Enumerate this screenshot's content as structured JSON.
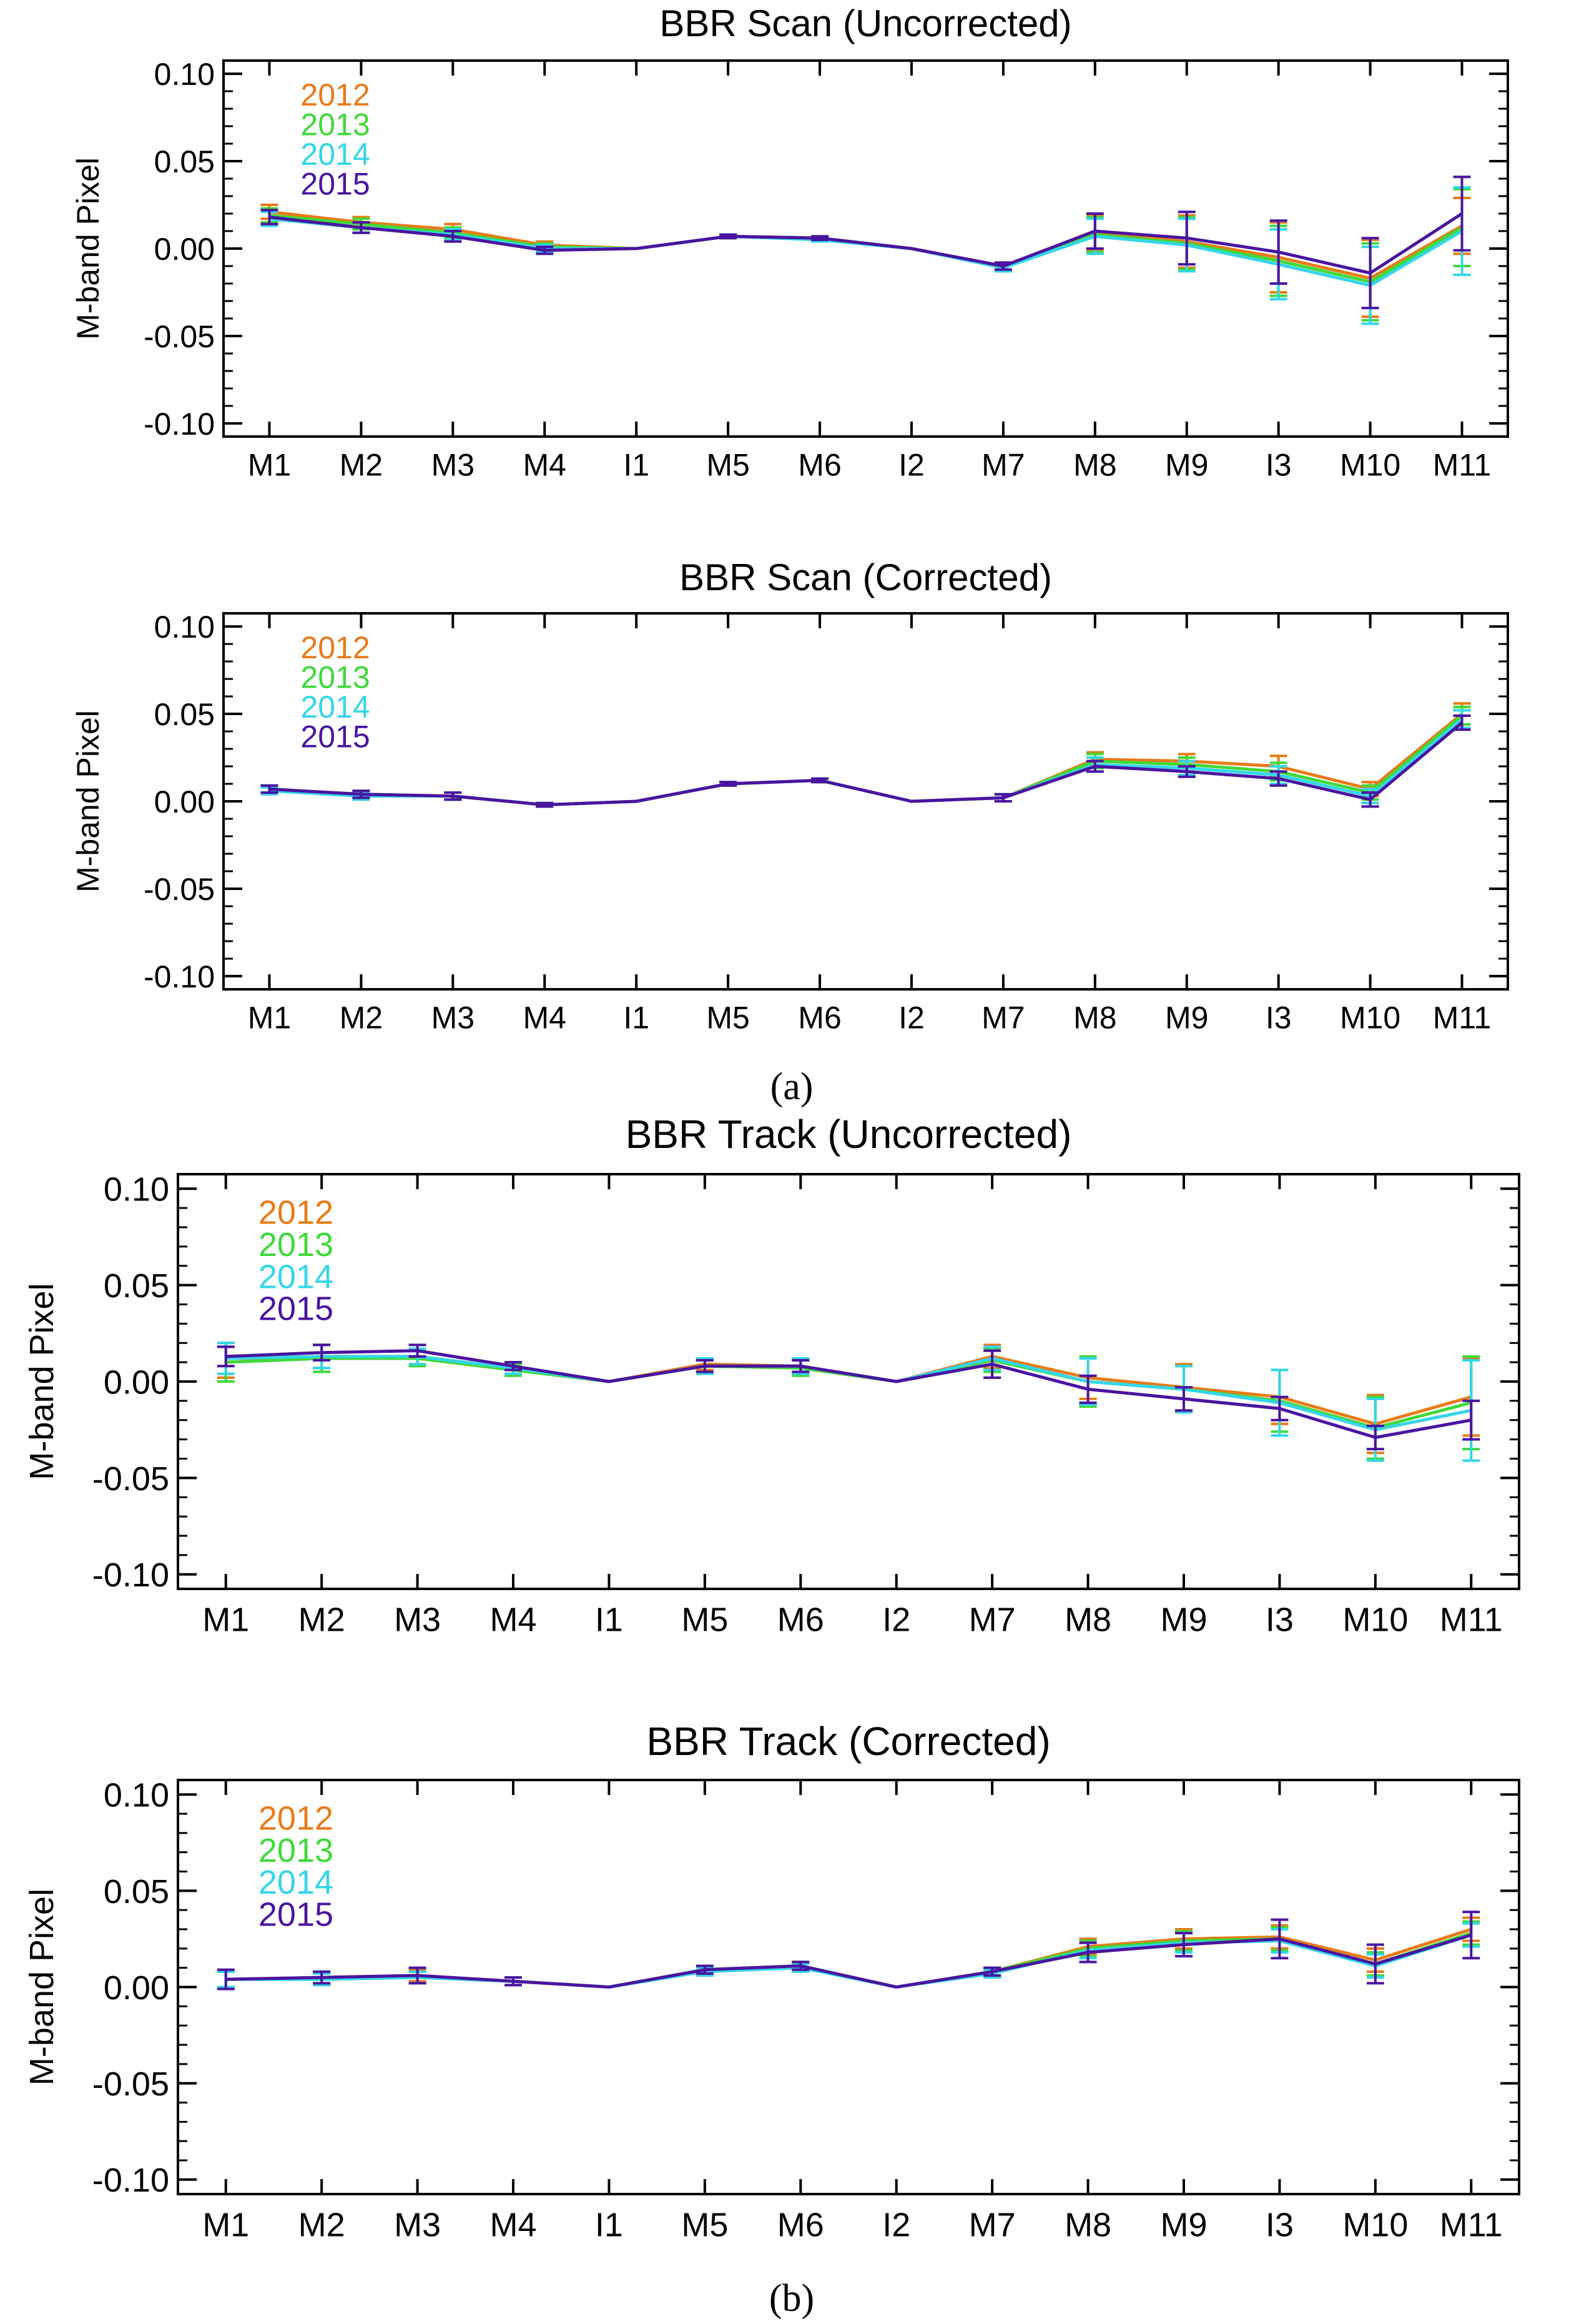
{
  "figure": {
    "panel_labels": [
      "(a)",
      "(b)"
    ],
    "legend_years": [
      "2012",
      "2013",
      "2014",
      "2015"
    ],
    "series_colors": {
      "2012": "#E87B17",
      "2013": "#3FD93A",
      "2014": "#34D6E8",
      "2015": "#4A14A0"
    }
  },
  "chart_data": [
    {
      "type": "line",
      "title": "BBR Scan (Uncorrected)",
      "xlabel": "",
      "ylabel": "M-band Pixel",
      "ylim": [
        -0.1,
        0.1
      ],
      "yticks": [
        "0.10",
        "0.05",
        "0.00",
        "-0.05",
        "-0.10"
      ],
      "categories": [
        "M1",
        "M2",
        "M3",
        "M4",
        "I1",
        "M5",
        "M6",
        "I2",
        "M7",
        "M8",
        "M9",
        "I3",
        "M10",
        "M11"
      ],
      "legend": "top-left",
      "series": [
        {
          "name": "2012",
          "values": [
            0.021,
            0.015,
            0.011,
            0.002,
            0.0,
            0.007,
            0.006,
            0.0,
            -0.01,
            0.009,
            0.004,
            -0.005,
            -0.017,
            0.013
          ],
          "errors": [
            0.004,
            0.003,
            0.003,
            0.002,
            0.0,
            0.001,
            0.001,
            0.0,
            0.002,
            0.01,
            0.015,
            0.02,
            0.022,
            0.016
          ]
        },
        {
          "name": "2013",
          "values": [
            0.019,
            0.014,
            0.009,
            0.001,
            0.0,
            0.007,
            0.006,
            0.0,
            -0.011,
            0.008,
            0.003,
            -0.007,
            -0.019,
            0.012
          ],
          "errors": [
            0.004,
            0.003,
            0.003,
            0.002,
            0.0,
            0.001,
            0.001,
            0.0,
            0.002,
            0.01,
            0.015,
            0.02,
            0.022,
            0.022
          ]
        },
        {
          "name": "2014",
          "values": [
            0.017,
            0.012,
            0.008,
            0.0,
            0.0,
            0.007,
            0.005,
            0.0,
            -0.011,
            0.007,
            0.002,
            -0.009,
            -0.021,
            0.01
          ],
          "errors": [
            0.004,
            0.003,
            0.003,
            0.002,
            0.0,
            0.001,
            0.001,
            0.0,
            0.002,
            0.01,
            0.015,
            0.02,
            0.022,
            0.025
          ]
        },
        {
          "name": "2015",
          "values": [
            0.018,
            0.012,
            0.007,
            -0.001,
            0.0,
            0.007,
            0.006,
            0.0,
            -0.01,
            0.01,
            0.006,
            -0.002,
            -0.014,
            0.02
          ],
          "errors": [
            0.004,
            0.003,
            0.003,
            0.002,
            0.0,
            0.001,
            0.001,
            0.0,
            0.002,
            0.01,
            0.015,
            0.018,
            0.02,
            0.021
          ]
        }
      ]
    },
    {
      "type": "line",
      "title": "BBR Scan (Corrected)",
      "xlabel": "",
      "ylabel": "M-band Pixel",
      "ylim": [
        -0.1,
        0.1
      ],
      "yticks": [
        "0.10",
        "0.05",
        "0.00",
        "-0.05",
        "-0.10"
      ],
      "categories": [
        "M1",
        "M2",
        "M3",
        "M4",
        "I1",
        "M5",
        "M6",
        "I2",
        "M7",
        "M8",
        "M9",
        "I3",
        "M10",
        "M11"
      ],
      "legend": "top-left",
      "series": [
        {
          "name": "2012",
          "values": [
            0.007,
            0.004,
            0.003,
            -0.002,
            0.0,
            0.01,
            0.012,
            0.0,
            0.002,
            0.024,
            0.023,
            0.02,
            0.007,
            0.05
          ],
          "errors": [
            0.002,
            0.002,
            0.002,
            0.001,
            0.0,
            0.001,
            0.001,
            0.0,
            0.002,
            0.004,
            0.004,
            0.006,
            0.004,
            0.006
          ]
        },
        {
          "name": "2013",
          "values": [
            0.007,
            0.004,
            0.003,
            -0.002,
            0.0,
            0.01,
            0.012,
            0.0,
            0.002,
            0.023,
            0.021,
            0.017,
            0.005,
            0.049
          ],
          "errors": [
            0.002,
            0.002,
            0.002,
            0.001,
            0.0,
            0.001,
            0.001,
            0.0,
            0.002,
            0.004,
            0.004,
            0.005,
            0.004,
            0.005
          ]
        },
        {
          "name": "2014",
          "values": [
            0.006,
            0.003,
            0.003,
            -0.002,
            0.0,
            0.01,
            0.012,
            0.0,
            0.002,
            0.021,
            0.019,
            0.015,
            0.003,
            0.047
          ],
          "errors": [
            0.002,
            0.002,
            0.002,
            0.001,
            0.0,
            0.001,
            0.001,
            0.0,
            0.002,
            0.004,
            0.004,
            0.005,
            0.004,
            0.005
          ]
        },
        {
          "name": "2015",
          "values": [
            0.007,
            0.004,
            0.003,
            -0.002,
            0.0,
            0.01,
            0.012,
            0.0,
            0.002,
            0.02,
            0.017,
            0.013,
            0.001,
            0.045
          ],
          "errors": [
            0.002,
            0.002,
            0.002,
            0.001,
            0.0,
            0.001,
            0.001,
            0.0,
            0.002,
            0.003,
            0.003,
            0.004,
            0.004,
            0.004
          ]
        }
      ]
    },
    {
      "type": "line",
      "title": "BBR Track (Uncorrected)",
      "xlabel": "",
      "ylabel": "M-band Pixel",
      "ylim": [
        -0.1,
        0.1
      ],
      "yticks": [
        "0.10",
        "0.05",
        "0.00",
        "-0.05",
        "-0.10"
      ],
      "categories": [
        "M1",
        "M2",
        "M3",
        "M4",
        "I1",
        "M5",
        "M6",
        "I2",
        "M7",
        "M8",
        "M9",
        "I3",
        "M10",
        "M11"
      ],
      "legend": "top-left",
      "series": [
        {
          "name": "2012",
          "values": [
            0.01,
            0.013,
            0.013,
            0.007,
            0.0,
            0.009,
            0.008,
            0.0,
            0.013,
            0.002,
            -0.003,
            -0.008,
            -0.022,
            -0.008
          ],
          "errors": [
            0.008,
            0.006,
            0.004,
            0.003,
            0.0,
            0.003,
            0.004,
            0.0,
            0.006,
            0.011,
            0.012,
            0.014,
            0.015,
            0.02
          ]
        },
        {
          "name": "2013",
          "values": [
            0.01,
            0.012,
            0.012,
            0.006,
            0.0,
            0.008,
            0.007,
            0.0,
            0.011,
            0.0,
            -0.004,
            -0.01,
            -0.024,
            -0.011
          ],
          "errors": [
            0.01,
            0.007,
            0.004,
            0.003,
            0.0,
            0.003,
            0.004,
            0.0,
            0.006,
            0.013,
            0.012,
            0.016,
            0.016,
            0.024
          ]
        },
        {
          "name": "2014",
          "values": [
            0.012,
            0.013,
            0.013,
            0.007,
            0.0,
            0.008,
            0.008,
            0.0,
            0.012,
            0.0,
            -0.004,
            -0.011,
            -0.025,
            -0.015
          ],
          "errors": [
            0.008,
            0.006,
            0.004,
            0.003,
            0.0,
            0.004,
            0.004,
            0.0,
            0.006,
            0.012,
            0.012,
            0.017,
            0.016,
            0.026
          ]
        },
        {
          "name": "2015",
          "values": [
            0.013,
            0.015,
            0.016,
            0.008,
            0.0,
            0.008,
            0.008,
            0.0,
            0.009,
            -0.004,
            -0.009,
            -0.014,
            -0.029,
            -0.02
          ],
          "errors": [
            0.005,
            0.004,
            0.003,
            0.002,
            0.0,
            0.003,
            0.003,
            0.0,
            0.007,
            0.007,
            0.006,
            0.006,
            0.006,
            0.01
          ]
        }
      ]
    },
    {
      "type": "line",
      "title": "BBR Track (Corrected)",
      "xlabel": "",
      "ylabel": "M-band Pixel",
      "ylim": [
        -0.1,
        0.1
      ],
      "yticks": [
        "0.10",
        "0.05",
        "0.00",
        "-0.05",
        "-0.10"
      ],
      "categories": [
        "M1",
        "M2",
        "M3",
        "M4",
        "I1",
        "M5",
        "M6",
        "I2",
        "M7",
        "M8",
        "M9",
        "I3",
        "M10",
        "M11"
      ],
      "legend": "top-left",
      "series": [
        {
          "name": "2012",
          "values": [
            0.004,
            0.005,
            0.006,
            0.003,
            0.0,
            0.009,
            0.011,
            0.0,
            0.008,
            0.021,
            0.025,
            0.026,
            0.014,
            0.03
          ],
          "errors": [
            0.004,
            0.003,
            0.003,
            0.002,
            0.0,
            0.002,
            0.002,
            0.0,
            0.002,
            0.004,
            0.005,
            0.006,
            0.006,
            0.006
          ]
        },
        {
          "name": "2013",
          "values": [
            0.004,
            0.004,
            0.005,
            0.003,
            0.0,
            0.009,
            0.011,
            0.0,
            0.008,
            0.02,
            0.024,
            0.025,
            0.012,
            0.028
          ],
          "errors": [
            0.004,
            0.003,
            0.003,
            0.002,
            0.0,
            0.002,
            0.002,
            0.0,
            0.002,
            0.004,
            0.005,
            0.006,
            0.006,
            0.006
          ]
        },
        {
          "name": "2014",
          "values": [
            0.004,
            0.004,
            0.005,
            0.003,
            0.0,
            0.008,
            0.01,
            0.0,
            0.007,
            0.019,
            0.023,
            0.024,
            0.011,
            0.027
          ],
          "errors": [
            0.004,
            0.003,
            0.003,
            0.002,
            0.0,
            0.002,
            0.002,
            0.0,
            0.002,
            0.004,
            0.005,
            0.006,
            0.006,
            0.006
          ]
        },
        {
          "name": "2015",
          "values": [
            0.004,
            0.005,
            0.006,
            0.003,
            0.0,
            0.009,
            0.011,
            0.0,
            0.008,
            0.018,
            0.022,
            0.025,
            0.012,
            0.027
          ],
          "errors": [
            0.005,
            0.003,
            0.004,
            0.002,
            0.0,
            0.002,
            0.002,
            0.0,
            0.002,
            0.005,
            0.006,
            0.01,
            0.01,
            0.012
          ]
        }
      ]
    }
  ]
}
